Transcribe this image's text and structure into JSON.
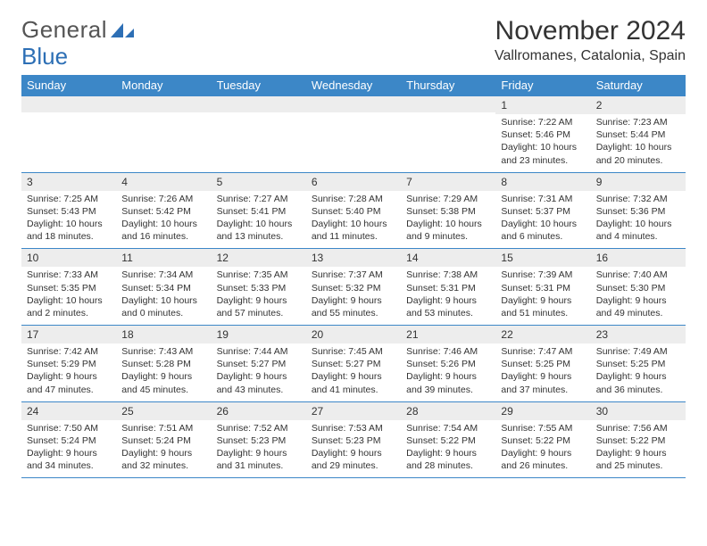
{
  "logo": {
    "word1": "General",
    "word2": "Blue"
  },
  "title": "November 2024",
  "location": "Vallromanes, Catalonia, Spain",
  "colors": {
    "header_bar": "#3c87c7",
    "header_text": "#ffffff",
    "daynum_bg": "#ededed",
    "rule": "#3c87c7",
    "body_text": "#333333",
    "logo_gray": "#555555",
    "logo_blue": "#2d6fb5"
  },
  "typography": {
    "title_fontsize": 30,
    "location_fontsize": 16,
    "header_fontsize": 13,
    "daynum_fontsize": 12,
    "body_fontsize": 10.5,
    "font_family": "Arial"
  },
  "day_headers": [
    "Sunday",
    "Monday",
    "Tuesday",
    "Wednesday",
    "Thursday",
    "Friday",
    "Saturday"
  ],
  "weeks": [
    [
      {
        "num": "",
        "sunrise": "",
        "sunset": "",
        "daylight": ""
      },
      {
        "num": "",
        "sunrise": "",
        "sunset": "",
        "daylight": ""
      },
      {
        "num": "",
        "sunrise": "",
        "sunset": "",
        "daylight": ""
      },
      {
        "num": "",
        "sunrise": "",
        "sunset": "",
        "daylight": ""
      },
      {
        "num": "",
        "sunrise": "",
        "sunset": "",
        "daylight": ""
      },
      {
        "num": "1",
        "sunrise": "Sunrise: 7:22 AM",
        "sunset": "Sunset: 5:46 PM",
        "daylight": "Daylight: 10 hours and 23 minutes."
      },
      {
        "num": "2",
        "sunrise": "Sunrise: 7:23 AM",
        "sunset": "Sunset: 5:44 PM",
        "daylight": "Daylight: 10 hours and 20 minutes."
      }
    ],
    [
      {
        "num": "3",
        "sunrise": "Sunrise: 7:25 AM",
        "sunset": "Sunset: 5:43 PM",
        "daylight": "Daylight: 10 hours and 18 minutes."
      },
      {
        "num": "4",
        "sunrise": "Sunrise: 7:26 AM",
        "sunset": "Sunset: 5:42 PM",
        "daylight": "Daylight: 10 hours and 16 minutes."
      },
      {
        "num": "5",
        "sunrise": "Sunrise: 7:27 AM",
        "sunset": "Sunset: 5:41 PM",
        "daylight": "Daylight: 10 hours and 13 minutes."
      },
      {
        "num": "6",
        "sunrise": "Sunrise: 7:28 AM",
        "sunset": "Sunset: 5:40 PM",
        "daylight": "Daylight: 10 hours and 11 minutes."
      },
      {
        "num": "7",
        "sunrise": "Sunrise: 7:29 AM",
        "sunset": "Sunset: 5:38 PM",
        "daylight": "Daylight: 10 hours and 9 minutes."
      },
      {
        "num": "8",
        "sunrise": "Sunrise: 7:31 AM",
        "sunset": "Sunset: 5:37 PM",
        "daylight": "Daylight: 10 hours and 6 minutes."
      },
      {
        "num": "9",
        "sunrise": "Sunrise: 7:32 AM",
        "sunset": "Sunset: 5:36 PM",
        "daylight": "Daylight: 10 hours and 4 minutes."
      }
    ],
    [
      {
        "num": "10",
        "sunrise": "Sunrise: 7:33 AM",
        "sunset": "Sunset: 5:35 PM",
        "daylight": "Daylight: 10 hours and 2 minutes."
      },
      {
        "num": "11",
        "sunrise": "Sunrise: 7:34 AM",
        "sunset": "Sunset: 5:34 PM",
        "daylight": "Daylight: 10 hours and 0 minutes."
      },
      {
        "num": "12",
        "sunrise": "Sunrise: 7:35 AM",
        "sunset": "Sunset: 5:33 PM",
        "daylight": "Daylight: 9 hours and 57 minutes."
      },
      {
        "num": "13",
        "sunrise": "Sunrise: 7:37 AM",
        "sunset": "Sunset: 5:32 PM",
        "daylight": "Daylight: 9 hours and 55 minutes."
      },
      {
        "num": "14",
        "sunrise": "Sunrise: 7:38 AM",
        "sunset": "Sunset: 5:31 PM",
        "daylight": "Daylight: 9 hours and 53 minutes."
      },
      {
        "num": "15",
        "sunrise": "Sunrise: 7:39 AM",
        "sunset": "Sunset: 5:31 PM",
        "daylight": "Daylight: 9 hours and 51 minutes."
      },
      {
        "num": "16",
        "sunrise": "Sunrise: 7:40 AM",
        "sunset": "Sunset: 5:30 PM",
        "daylight": "Daylight: 9 hours and 49 minutes."
      }
    ],
    [
      {
        "num": "17",
        "sunrise": "Sunrise: 7:42 AM",
        "sunset": "Sunset: 5:29 PM",
        "daylight": "Daylight: 9 hours and 47 minutes."
      },
      {
        "num": "18",
        "sunrise": "Sunrise: 7:43 AM",
        "sunset": "Sunset: 5:28 PM",
        "daylight": "Daylight: 9 hours and 45 minutes."
      },
      {
        "num": "19",
        "sunrise": "Sunrise: 7:44 AM",
        "sunset": "Sunset: 5:27 PM",
        "daylight": "Daylight: 9 hours and 43 minutes."
      },
      {
        "num": "20",
        "sunrise": "Sunrise: 7:45 AM",
        "sunset": "Sunset: 5:27 PM",
        "daylight": "Daylight: 9 hours and 41 minutes."
      },
      {
        "num": "21",
        "sunrise": "Sunrise: 7:46 AM",
        "sunset": "Sunset: 5:26 PM",
        "daylight": "Daylight: 9 hours and 39 minutes."
      },
      {
        "num": "22",
        "sunrise": "Sunrise: 7:47 AM",
        "sunset": "Sunset: 5:25 PM",
        "daylight": "Daylight: 9 hours and 37 minutes."
      },
      {
        "num": "23",
        "sunrise": "Sunrise: 7:49 AM",
        "sunset": "Sunset: 5:25 PM",
        "daylight": "Daylight: 9 hours and 36 minutes."
      }
    ],
    [
      {
        "num": "24",
        "sunrise": "Sunrise: 7:50 AM",
        "sunset": "Sunset: 5:24 PM",
        "daylight": "Daylight: 9 hours and 34 minutes."
      },
      {
        "num": "25",
        "sunrise": "Sunrise: 7:51 AM",
        "sunset": "Sunset: 5:24 PM",
        "daylight": "Daylight: 9 hours and 32 minutes."
      },
      {
        "num": "26",
        "sunrise": "Sunrise: 7:52 AM",
        "sunset": "Sunset: 5:23 PM",
        "daylight": "Daylight: 9 hours and 31 minutes."
      },
      {
        "num": "27",
        "sunrise": "Sunrise: 7:53 AM",
        "sunset": "Sunset: 5:23 PM",
        "daylight": "Daylight: 9 hours and 29 minutes."
      },
      {
        "num": "28",
        "sunrise": "Sunrise: 7:54 AM",
        "sunset": "Sunset: 5:22 PM",
        "daylight": "Daylight: 9 hours and 28 minutes."
      },
      {
        "num": "29",
        "sunrise": "Sunrise: 7:55 AM",
        "sunset": "Sunset: 5:22 PM",
        "daylight": "Daylight: 9 hours and 26 minutes."
      },
      {
        "num": "30",
        "sunrise": "Sunrise: 7:56 AM",
        "sunset": "Sunset: 5:22 PM",
        "daylight": "Daylight: 9 hours and 25 minutes."
      }
    ]
  ]
}
